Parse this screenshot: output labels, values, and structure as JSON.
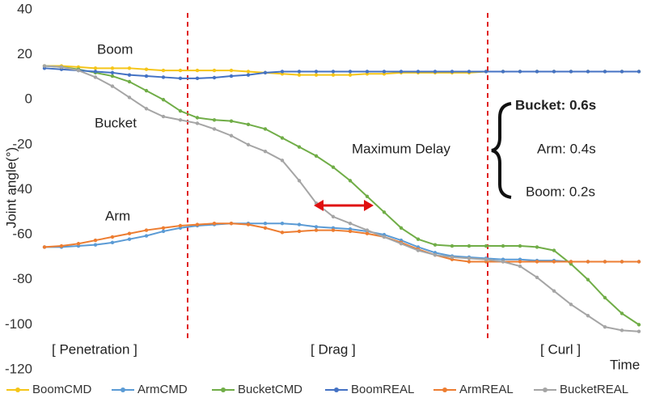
{
  "chart_data": {
    "type": "line",
    "y_label": "Joint angle(°)",
    "categories": [
      null,
      null,
      null,
      null,
      null,
      null,
      null,
      null,
      null,
      null,
      null,
      null,
      null,
      null,
      null,
      null,
      null,
      null,
      null,
      null,
      null,
      null,
      null,
      null,
      null,
      null,
      null,
      null,
      null,
      null,
      null,
      null,
      null,
      null,
      null,
      null
    ],
    "series": [
      {
        "name": "BoomCMD",
        "color": "#f5c518",
        "values": [
          15,
          15,
          14.5,
          14,
          14,
          14,
          13.5,
          13,
          13,
          13,
          13,
          13,
          12.5,
          12,
          11.5,
          11,
          11,
          11,
          11,
          11.5,
          11.5,
          12,
          12,
          12,
          12,
          12,
          12.5,
          12.5,
          12.5,
          12.5,
          12.5,
          12.5,
          12.5,
          12.5,
          12.5,
          12.5
        ]
      },
      {
        "name": "ArmCMD",
        "color": "#5b9bd5",
        "values": [
          -65.5,
          -65.5,
          -65,
          -64.5,
          -63.5,
          -62,
          -60.5,
          -58.5,
          -57,
          -56,
          -55.5,
          -55,
          -55,
          -55,
          -55,
          -55.5,
          -56.5,
          -57,
          -57.5,
          -58.5,
          -60,
          -62.5,
          -65.5,
          -68,
          -69.5,
          -70,
          -70.5,
          -71,
          -71,
          -71.5,
          -71.5,
          -72,
          -72,
          -72,
          -72,
          -72
        ]
      },
      {
        "name": "BucketCMD",
        "color": "#70ad47",
        "values": [
          15,
          14.5,
          13.5,
          12,
          10.5,
          8,
          4,
          0,
          -5,
          -8,
          -9,
          -9.5,
          -11,
          -13,
          -17,
          -21,
          -25,
          -30,
          -36,
          -43,
          -50,
          -57,
          -62,
          -64.5,
          -65,
          -65,
          -65,
          -65,
          -65,
          -65.5,
          -67,
          -73,
          -80,
          -88,
          -95,
          -100
        ]
      },
      {
        "name": "BoomREAL",
        "color": "#4472c4",
        "values": [
          14,
          13.5,
          13,
          12.5,
          12,
          11,
          10.5,
          10,
          9.5,
          9.5,
          9.8,
          10.5,
          11,
          12,
          12.5,
          12.5,
          12.5,
          12.5,
          12.5,
          12.5,
          12.5,
          12.5,
          12.5,
          12.5,
          12.5,
          12.5,
          12.5,
          12.5,
          12.5,
          12.5,
          12.5,
          12.5,
          12.5,
          12.5,
          12.5,
          12.5
        ]
      },
      {
        "name": "ArmREAL",
        "color": "#ed7d31",
        "values": [
          -65.5,
          -65,
          -64,
          -62.5,
          -61,
          -59.5,
          -58,
          -57,
          -56,
          -55.5,
          -55,
          -55,
          -55.5,
          -57,
          -59,
          -58.5,
          -58,
          -58,
          -58.5,
          -59.5,
          -61,
          -63.5,
          -66.5,
          -69,
          -71,
          -72,
          -72,
          -72,
          -72,
          -72,
          -72,
          -72,
          -72,
          -72,
          -72,
          -72
        ]
      },
      {
        "name": "BucketREAL",
        "color": "#a5a5a5",
        "values": [
          15,
          14.5,
          13,
          10,
          6,
          1,
          -4,
          -7.5,
          -9,
          -10.5,
          -13,
          -16,
          -20,
          -23,
          -27,
          -36,
          -46,
          -52,
          -55,
          -58,
          -61,
          -64,
          -67,
          -69,
          -70,
          -70.5,
          -71,
          -72,
          -74,
          -79,
          -85,
          -91,
          -96,
          -101,
          -102.5,
          -103
        ]
      }
    ],
    "ylim": [
      -120,
      40
    ],
    "yticks": [
      -120,
      -100,
      -80,
      -60,
      -40,
      -20,
      0,
      20,
      40
    ],
    "grid": false,
    "legend": "bottom",
    "annotations": [
      "Boom",
      "Bucket",
      "Arm",
      "[ Penetration ]",
      "[ Drag ]",
      "[ Curl ]",
      "Time",
      "Maximum Delay",
      "Bucket: 0.6s",
      "Arm: 0.4s",
      "Boom: 0.2s"
    ]
  }
}
